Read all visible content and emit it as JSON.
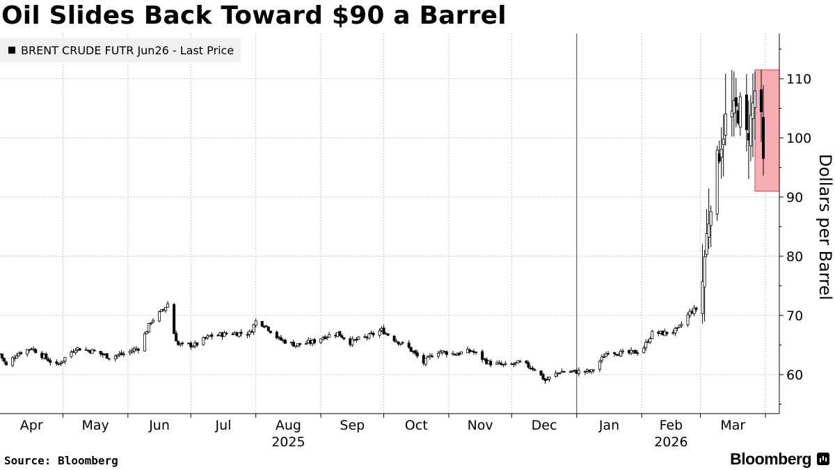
{
  "chart_data": {
    "type": "candlestick",
    "title": "Oil Slides Back Toward $90 a Barrel",
    "legend": [
      "BRENT CRUDE FUTR Jun26 - Last Price"
    ],
    "legend_position": "top-left",
    "ylabel": "Dollars per Barrel",
    "y_axis_side": "right",
    "ylim": [
      53.5,
      117
    ],
    "yticks": [
      60,
      70,
      80,
      90,
      100,
      110
    ],
    "x_months": [
      "Apr",
      "May",
      "Jun",
      "Jul",
      "Aug",
      "Sep",
      "Oct",
      "Nov",
      "Dec",
      "Jan",
      "Feb",
      "Mar"
    ],
    "x_years": [
      {
        "label": "2025",
        "under": "Aug"
      },
      {
        "label": "2026",
        "under": "Feb"
      }
    ],
    "grid": true,
    "date_range": [
      "2025-04-01",
      "2026-03-31"
    ],
    "anchors": [
      [
        "2025-04-01",
        63.5
      ],
      [
        "2025-04-04",
        61.5
      ],
      [
        "2025-04-09",
        63.5
      ],
      [
        "2025-04-16",
        64.5
      ],
      [
        "2025-04-22",
        63.0
      ],
      [
        "2025-04-28",
        61.5
      ],
      [
        "2025-05-07",
        64.5
      ],
      [
        "2025-05-15",
        64.0
      ],
      [
        "2025-05-23",
        63.0
      ],
      [
        "2025-05-30",
        63.5
      ],
      [
        "2025-06-06",
        64.5
      ],
      [
        "2025-06-12",
        69.0
      ],
      [
        "2025-06-18",
        71.0
      ],
      [
        "2025-06-20",
        72.0
      ],
      [
        "2025-06-23",
        67.0
      ],
      [
        "2025-06-25",
        65.0
      ],
      [
        "2025-07-03",
        65.0
      ],
      [
        "2025-07-10",
        66.5
      ],
      [
        "2025-07-20",
        67.0
      ],
      [
        "2025-07-29",
        67.0
      ],
      [
        "2025-08-01",
        69.0
      ],
      [
        "2025-08-05",
        68.5
      ],
      [
        "2025-08-12",
        66.0
      ],
      [
        "2025-08-20",
        65.0
      ],
      [
        "2025-08-28",
        65.5
      ],
      [
        "2025-09-03",
        66.5
      ],
      [
        "2025-09-09",
        67.0
      ],
      [
        "2025-09-15",
        65.5
      ],
      [
        "2025-09-24",
        66.5
      ],
      [
        "2025-09-30",
        67.5
      ],
      [
        "2025-10-06",
        66.0
      ],
      [
        "2025-10-13",
        64.5
      ],
      [
        "2025-10-20",
        62.0
      ],
      [
        "2025-10-26",
        64.0
      ],
      [
        "2025-11-04",
        63.5
      ],
      [
        "2025-11-12",
        64.0
      ],
      [
        "2025-11-20",
        62.0
      ],
      [
        "2025-11-28",
        61.5
      ],
      [
        "2025-12-05",
        62.0
      ],
      [
        "2025-12-12",
        61.0
      ],
      [
        "2025-12-17",
        59.0
      ],
      [
        "2025-12-24",
        60.5
      ],
      [
        "2026-01-02",
        60.5
      ],
      [
        "2026-01-08",
        60.5
      ],
      [
        "2026-01-16",
        64.0
      ],
      [
        "2026-01-24",
        63.5
      ],
      [
        "2026-02-01",
        64.0
      ],
      [
        "2026-02-06",
        67.0
      ],
      [
        "2026-02-12",
        67.0
      ],
      [
        "2026-02-18",
        67.5
      ],
      [
        "2026-02-24",
        70.5
      ],
      [
        "2026-03-01",
        71.5
      ],
      [
        "2026-03-03",
        80.0
      ],
      [
        "2026-03-06",
        90.0
      ],
      [
        "2026-03-08",
        93.0
      ],
      [
        "2026-03-10",
        98.0
      ],
      [
        "2026-03-13",
        103.0
      ],
      [
        "2026-03-17",
        104.0
      ],
      [
        "2026-03-20",
        105.0
      ],
      [
        "2026-03-23",
        100.0
      ],
      [
        "2026-03-25",
        103.0
      ],
      [
        "2026-03-27",
        108.0
      ],
      [
        "2026-03-28",
        110.0
      ],
      [
        "2026-03-30",
        102.0
      ],
      [
        "2026-03-31",
        95.0
      ]
    ],
    "highlight": {
      "from": "2026-03-28",
      "to": "2026-03-31",
      "low": 91,
      "high": 111.5,
      "color": "#f4a0a4"
    }
  },
  "footer": {
    "source": "Source: Bloomberg",
    "brand": "Bloomberg"
  }
}
